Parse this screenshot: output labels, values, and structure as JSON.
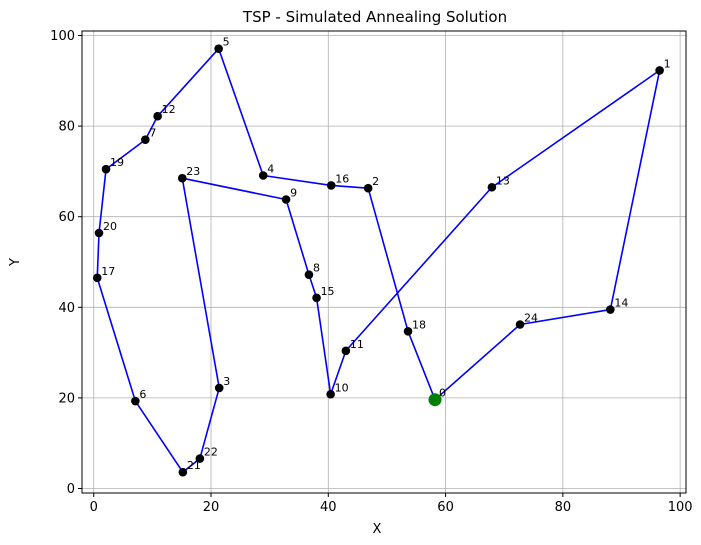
{
  "chart_data": {
    "type": "scatter",
    "title": "TSP - Simulated Annealing Solution",
    "xlabel": "X",
    "ylabel": "Y",
    "xlim": [
      -2,
      101
    ],
    "ylim": [
      -1,
      101
    ],
    "xticks": [
      0,
      20,
      40,
      60,
      80,
      100
    ],
    "yticks": [
      0,
      20,
      40,
      60,
      80,
      100
    ],
    "grid": true,
    "colors": {
      "route": "#0000ff",
      "node": "#000000",
      "start": "#008000"
    },
    "nodes": [
      {
        "id": "0",
        "x": 58.2,
        "y": 19.6,
        "start": true
      },
      {
        "id": "1",
        "x": 96.5,
        "y": 92.3
      },
      {
        "id": "2",
        "x": 46.8,
        "y": 66.3
      },
      {
        "id": "3",
        "x": 21.4,
        "y": 22.2
      },
      {
        "id": "4",
        "x": 28.9,
        "y": 69.1
      },
      {
        "id": "5",
        "x": 21.3,
        "y": 97.1
      },
      {
        "id": "6",
        "x": 7.1,
        "y": 19.3
      },
      {
        "id": "7",
        "x": 8.8,
        "y": 77.0
      },
      {
        "id": "8",
        "x": 36.7,
        "y": 47.2
      },
      {
        "id": "9",
        "x": 32.8,
        "y": 63.8
      },
      {
        "id": "10",
        "x": 40.4,
        "y": 20.8
      },
      {
        "id": "11",
        "x": 43.0,
        "y": 30.4
      },
      {
        "id": "12",
        "x": 10.9,
        "y": 82.2
      },
      {
        "id": "13",
        "x": 67.9,
        "y": 66.5
      },
      {
        "id": "14",
        "x": 88.1,
        "y": 39.5
      },
      {
        "id": "15",
        "x": 38.0,
        "y": 42.1
      },
      {
        "id": "16",
        "x": 40.5,
        "y": 66.9
      },
      {
        "id": "17",
        "x": 0.6,
        "y": 46.5
      },
      {
        "id": "18",
        "x": 53.6,
        "y": 34.7
      },
      {
        "id": "19",
        "x": 2.1,
        "y": 70.5
      },
      {
        "id": "20",
        "x": 0.9,
        "y": 56.4
      },
      {
        "id": "21",
        "x": 15.2,
        "y": 3.6
      },
      {
        "id": "22",
        "x": 18.1,
        "y": 6.6
      },
      {
        "id": "23",
        "x": 15.1,
        "y": 68.5
      },
      {
        "id": "24",
        "x": 72.7,
        "y": 36.2
      }
    ],
    "route": [
      "0",
      "18",
      "2",
      "16",
      "4",
      "5",
      "12",
      "7",
      "19",
      "20",
      "17",
      "6",
      "21",
      "22",
      "3",
      "23",
      "9",
      "8",
      "15",
      "10",
      "11",
      "13",
      "1",
      "14",
      "24",
      "0"
    ]
  }
}
